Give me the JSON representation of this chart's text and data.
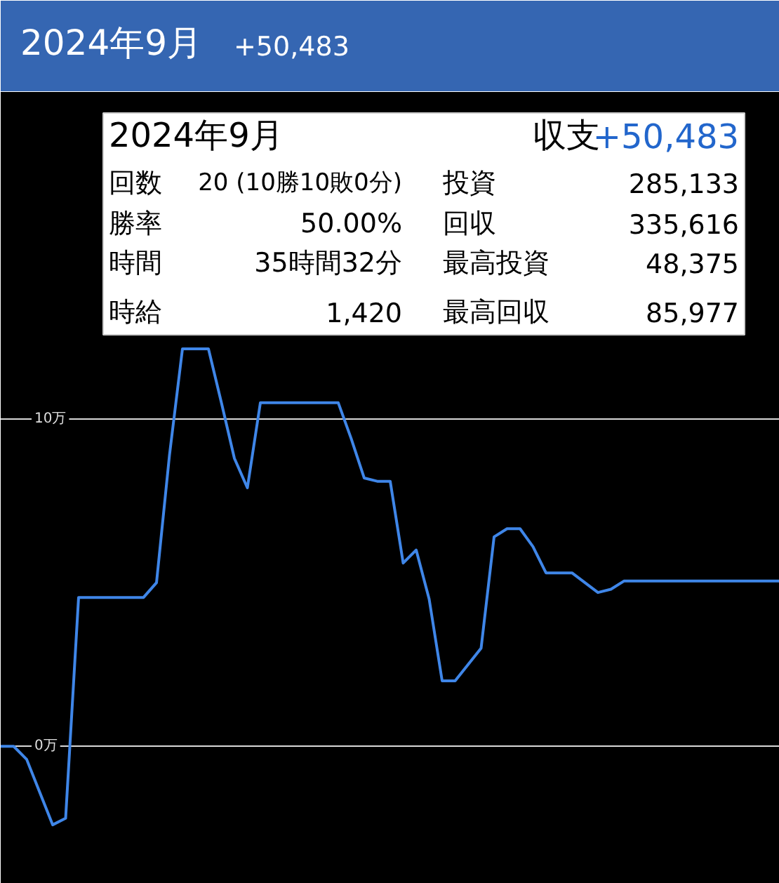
{
  "chart_data": {
    "type": "line",
    "title": "2024年9月",
    "subtitle": "+50,483",
    "categories": [
      null,
      null,
      null,
      null,
      null,
      null,
      null,
      null,
      null,
      null,
      null,
      null,
      null,
      null,
      null,
      null,
      null,
      null,
      null,
      null,
      null,
      null,
      null,
      null,
      null,
      null,
      null,
      null,
      null,
      null,
      null,
      null,
      null,
      null,
      null,
      null,
      null,
      null,
      null,
      null,
      null,
      null,
      null,
      null,
      null,
      null,
      null,
      null,
      null,
      null,
      null,
      null,
      null,
      null,
      null,
      null,
      null,
      null,
      null,
      null,
      null
    ],
    "series": [
      {
        "color": "#3f86e8",
        "values": [
          0,
          0,
          -0.4,
          -1.4,
          -2.4,
          -2.2,
          4.55,
          4.55,
          4.55,
          4.55,
          4.55,
          4.55,
          5.0,
          8.9,
          12.15,
          12.15,
          12.15,
          10.5,
          8.8,
          7.9,
          10.5,
          10.5,
          10.5,
          10.5,
          10.5,
          10.5,
          10.5,
          9.4,
          8.2,
          8.1,
          8.1,
          5.6,
          6.0,
          4.5,
          2.0,
          2.0,
          2.5,
          3.0,
          6.4,
          6.65,
          6.65,
          6.1,
          5.3,
          5.3,
          5.3,
          5.0,
          4.7,
          4.8,
          5.05,
          5.05,
          5.05,
          5.05,
          5.05,
          5.05,
          5.05,
          5.05,
          5.05,
          5.05,
          5.05,
          5.05,
          5.05
        ]
      }
    ],
    "ylim": [
      -4.2,
      20
    ],
    "yticks": [
      {
        "value": 0,
        "label": "0万"
      },
      {
        "value": 10,
        "label": "10万"
      }
    ],
    "grid": "y",
    "tick_labels": "y",
    "line_style": "solid",
    "annotations": [
      "2024年9月",
      "収支",
      "+50,483",
      "回数",
      "20 (10勝10敗0分)",
      "投資",
      "285,133",
      "勝率",
      "50.00%",
      "回収",
      "335,616",
      "時間",
      "35時間32分",
      "最高投資",
      "48,375",
      "時給",
      "1,420",
      "最高回収",
      "85,977"
    ]
  }
}
